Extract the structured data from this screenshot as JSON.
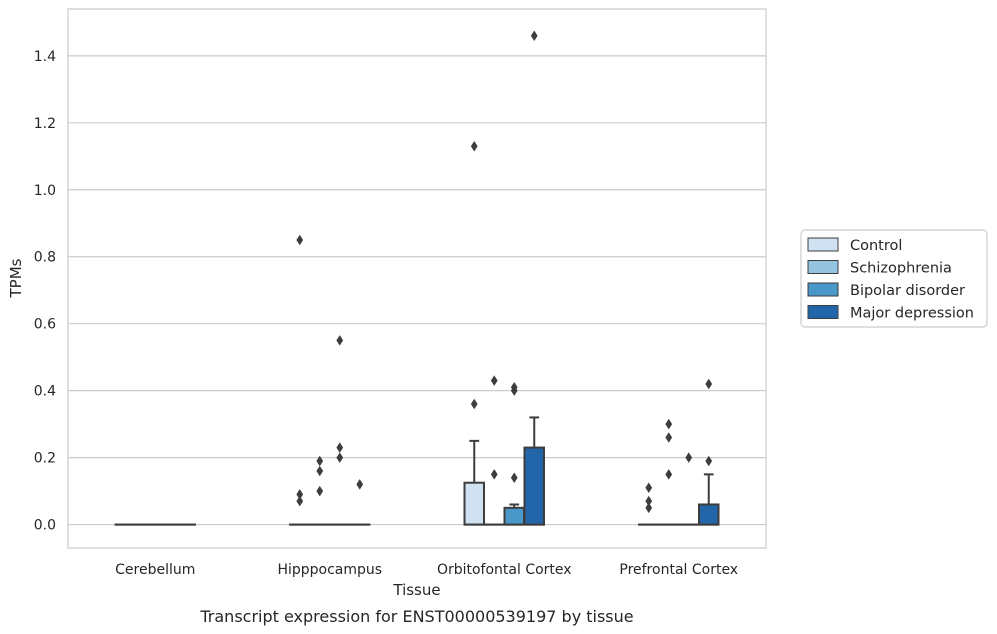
{
  "chart_data": {
    "type": "box",
    "xlabel": "Tissue",
    "ylabel": "TPMs",
    "caption": "Transcript expression for ENST00000539197 by tissue",
    "ylim": [
      -0.07,
      1.54
    ],
    "yticks": [
      0.0,
      0.2,
      0.4,
      0.6,
      0.8,
      1.0,
      1.2,
      1.4
    ],
    "ytick_labels": [
      "0.0",
      "0.2",
      "0.4",
      "0.6",
      "0.8",
      "1.0",
      "1.2",
      "1.4"
    ],
    "grid": "horizontal",
    "legend_position": "right",
    "categories": [
      "Cerebellum",
      "Hipppocampus",
      "Orbitofontal Cortex",
      "Prefrontal Cortex"
    ],
    "series": [
      {
        "name": "Control",
        "color": "#d0e1f2",
        "boxes": [
          {
            "q1": 0,
            "median": 0,
            "q3": 0,
            "whisker_high": 0,
            "outliers": []
          },
          {
            "q1": 0,
            "median": 0,
            "q3": 0,
            "whisker_high": 0,
            "outliers": [
              0.85,
              0.09,
              0.07
            ]
          },
          {
            "q1": 0,
            "median": 0,
            "q3": 0.125,
            "whisker_high": 0.25,
            "outliers": [
              1.13,
              0.36
            ]
          },
          {
            "q1": 0,
            "median": 0,
            "q3": 0,
            "whisker_high": 0,
            "outliers": [
              0.11,
              0.07,
              0.05
            ]
          }
        ]
      },
      {
        "name": "Schizophrenia",
        "color": "#94c4df",
        "boxes": [
          {
            "q1": 0,
            "median": 0,
            "q3": 0,
            "whisker_high": 0,
            "outliers": []
          },
          {
            "q1": 0,
            "median": 0,
            "q3": 0,
            "whisker_high": 0,
            "outliers": [
              0.19,
              0.16,
              0.1
            ]
          },
          {
            "q1": 0,
            "median": 0,
            "q3": 0,
            "whisker_high": 0,
            "outliers": [
              0.43,
              0.15
            ]
          },
          {
            "q1": 0,
            "median": 0,
            "q3": 0,
            "whisker_high": 0,
            "outliers": [
              0.3,
              0.26,
              0.15
            ]
          }
        ]
      },
      {
        "name": "Bipolar disorder",
        "color": "#4a98c9",
        "boxes": [
          {
            "q1": 0,
            "median": 0,
            "q3": 0,
            "whisker_high": 0,
            "outliers": []
          },
          {
            "q1": 0,
            "median": 0,
            "q3": 0,
            "whisker_high": 0,
            "outliers": [
              0.55,
              0.23,
              0.2
            ]
          },
          {
            "q1": 0,
            "median": 0,
            "q3": 0.05,
            "whisker_high": 0.06,
            "outliers": [
              0.41,
              0.4,
              0.14
            ]
          },
          {
            "q1": 0,
            "median": 0,
            "q3": 0,
            "whisker_high": 0,
            "outliers": [
              0.2
            ]
          }
        ]
      },
      {
        "name": "Major depression",
        "color": "#2265a8",
        "boxes": [
          {
            "q1": 0,
            "median": 0,
            "q3": 0,
            "whisker_high": 0,
            "outliers": []
          },
          {
            "q1": 0,
            "median": 0,
            "q3": 0,
            "whisker_high": 0,
            "outliers": [
              0.12
            ]
          },
          {
            "q1": 0,
            "median": 0,
            "q3": 0.23,
            "whisker_high": 0.32,
            "outliers": [
              1.46
            ]
          },
          {
            "q1": 0,
            "median": 0,
            "q3": 0.06,
            "whisker_high": 0.15,
            "outliers": [
              0.42,
              0.19
            ]
          }
        ]
      }
    ]
  }
}
